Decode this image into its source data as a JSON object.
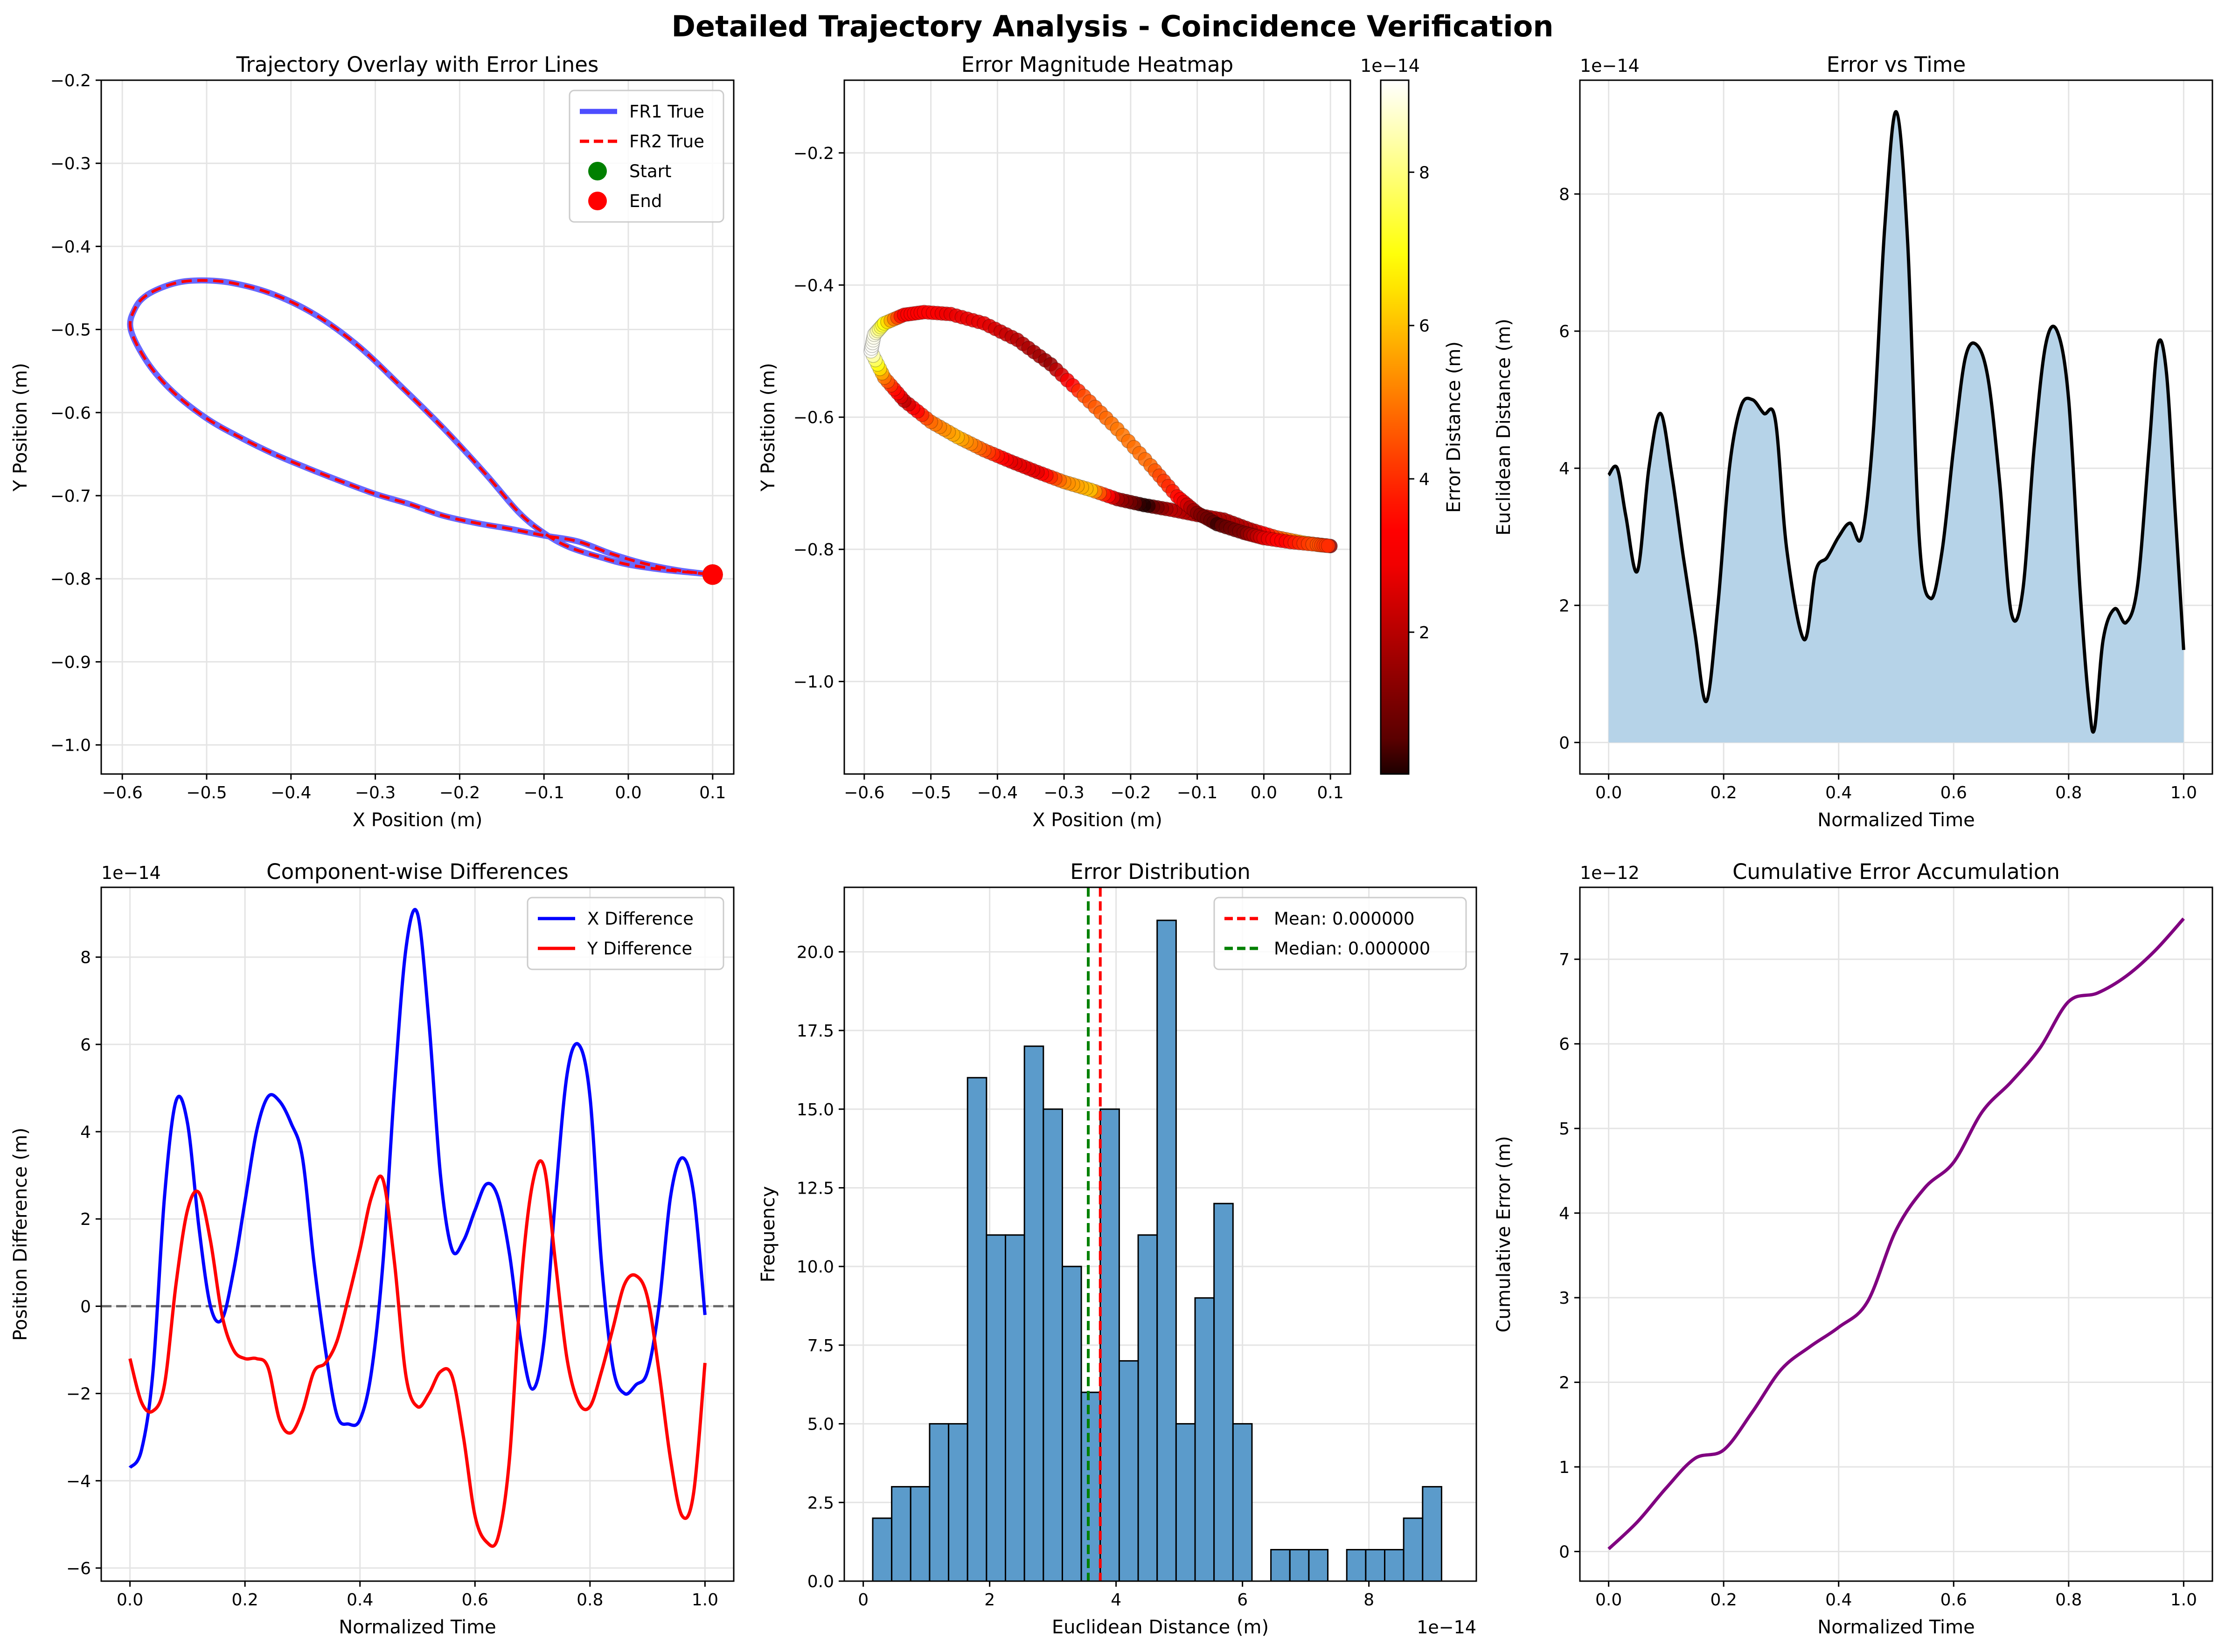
{
  "figure": {
    "title": "Detailed Trajectory Analysis - Coincidence Verification"
  },
  "chart_data": [
    {
      "id": "trajectory_overlay",
      "type": "line",
      "title": "Trajectory Overlay with Error Lines",
      "xlabel": "X Position (m)",
      "ylabel": "Y Position (m)",
      "xlim": [
        -0.625,
        0.125
      ],
      "ylim": [
        -1.035,
        -0.2
      ],
      "xticks": [
        -0.6,
        -0.5,
        -0.4,
        -0.3,
        -0.2,
        -0.1,
        0.0,
        0.1
      ],
      "xtick_labels": [
        "−0.6",
        "−0.5",
        "−0.4",
        "−0.3",
        "−0.2",
        "−0.1",
        "0.0",
        "0.1"
      ],
      "yticks": [
        -1.0,
        -0.9,
        -0.8,
        -0.7,
        -0.6,
        -0.5,
        -0.4,
        -0.3,
        -0.2
      ],
      "ytick_labels": [
        "−1.0",
        "−0.9",
        "−0.8",
        "−0.7",
        "−0.6",
        "−0.5",
        "−0.4",
        "−0.3",
        "−0.2"
      ],
      "grid": true,
      "legend_position": "upper right",
      "series": [
        {
          "name": "FR1 True",
          "style": "solid",
          "color": "#4d4dff",
          "x": [
            0.1,
            0.06,
            0.02,
            -0.02,
            -0.06,
            -0.1,
            -0.14,
            -0.18,
            -0.22,
            -0.26,
            -0.3,
            -0.34,
            -0.38,
            -0.42,
            -0.46,
            -0.5,
            -0.54,
            -0.57,
            -0.59,
            -0.585,
            -0.57,
            -0.54,
            -0.51,
            -0.47,
            -0.42,
            -0.37,
            -0.32,
            -0.27,
            -0.22,
            -0.17,
            -0.13,
            -0.1,
            -0.07,
            -0.03,
            0.0,
            0.04,
            0.08,
            0.1
          ],
          "y": [
            -0.795,
            -0.79,
            -0.782,
            -0.77,
            -0.755,
            -0.748,
            -0.74,
            -0.733,
            -0.724,
            -0.71,
            -0.698,
            -0.683,
            -0.667,
            -0.65,
            -0.63,
            -0.607,
            -0.575,
            -0.54,
            -0.5,
            -0.475,
            -0.458,
            -0.445,
            -0.441,
            -0.444,
            -0.458,
            -0.483,
            -0.52,
            -0.568,
            -0.618,
            -0.673,
            -0.72,
            -0.745,
            -0.762,
            -0.775,
            -0.783,
            -0.789,
            -0.793,
            -0.795
          ]
        },
        {
          "name": "FR2 True",
          "style": "dashed",
          "color": "#ff0000",
          "x": [
            0.1,
            0.06,
            0.02,
            -0.02,
            -0.06,
            -0.1,
            -0.14,
            -0.18,
            -0.22,
            -0.26,
            -0.3,
            -0.34,
            -0.38,
            -0.42,
            -0.46,
            -0.5,
            -0.54,
            -0.57,
            -0.59,
            -0.585,
            -0.57,
            -0.54,
            -0.51,
            -0.47,
            -0.42,
            -0.37,
            -0.32,
            -0.27,
            -0.22,
            -0.17,
            -0.13,
            -0.1,
            -0.07,
            -0.03,
            0.0,
            0.04,
            0.08,
            0.1
          ],
          "y": [
            -0.795,
            -0.79,
            -0.782,
            -0.77,
            -0.755,
            -0.748,
            -0.74,
            -0.733,
            -0.724,
            -0.71,
            -0.698,
            -0.683,
            -0.667,
            -0.65,
            -0.63,
            -0.607,
            -0.575,
            -0.54,
            -0.5,
            -0.475,
            -0.458,
            -0.445,
            -0.441,
            -0.444,
            -0.458,
            -0.483,
            -0.52,
            -0.568,
            -0.618,
            -0.673,
            -0.72,
            -0.745,
            -0.762,
            -0.775,
            -0.783,
            -0.789,
            -0.793,
            -0.795
          ]
        }
      ],
      "markers": [
        {
          "name": "Start",
          "x": 0.1,
          "y": -0.795,
          "color": "#008000"
        },
        {
          "name": "End",
          "x": 0.1,
          "y": -0.795,
          "color": "#ff0000"
        }
      ],
      "legend": [
        "FR1 True",
        "FR2 True",
        "Start",
        "End"
      ]
    },
    {
      "id": "error_heatmap",
      "type": "scatter",
      "title": "Error Magnitude Heatmap",
      "xlabel": "X Position (m)",
      "ylabel": "Y Position (m)",
      "xlim": [
        -0.63,
        0.13
      ],
      "ylim": [
        -1.14,
        -0.09
      ],
      "xticks": [
        -0.6,
        -0.5,
        -0.4,
        -0.3,
        -0.2,
        -0.1,
        0.0,
        0.1
      ],
      "xtick_labels": [
        "−0.6",
        "−0.5",
        "−0.4",
        "−0.3",
        "−0.2",
        "−0.1",
        "0.0",
        "0.1"
      ],
      "yticks": [
        -1.0,
        -0.8,
        -0.6,
        -0.4,
        -0.2
      ],
      "ytick_labels": [
        "−1.0",
        "−0.8",
        "−0.6",
        "−0.4",
        "−0.2"
      ],
      "grid": true,
      "colormap": "hot",
      "colorbar": {
        "label": "Error Distance (m)",
        "range": [
          0.15,
          9.2
        ],
        "ticks": [
          2,
          4,
          6,
          8
        ],
        "tick_labels": [
          "2",
          "4",
          "6",
          "8"
        ],
        "offset_text": "1e−14"
      },
      "points_x": [
        0.1,
        0.06,
        0.02,
        -0.02,
        -0.06,
        -0.1,
        -0.14,
        -0.18,
        -0.22,
        -0.26,
        -0.3,
        -0.34,
        -0.38,
        -0.42,
        -0.46,
        -0.5,
        -0.54,
        -0.57,
        -0.59,
        -0.585,
        -0.57,
        -0.54,
        -0.51,
        -0.47,
        -0.42,
        -0.37,
        -0.32,
        -0.27,
        -0.22,
        -0.17,
        -0.13,
        -0.1,
        -0.07,
        -0.03,
        0.0,
        0.04,
        0.08,
        0.1
      ],
      "points_y": [
        -0.795,
        -0.79,
        -0.782,
        -0.77,
        -0.755,
        -0.748,
        -0.74,
        -0.733,
        -0.724,
        -0.71,
        -0.698,
        -0.683,
        -0.667,
        -0.65,
        -0.63,
        -0.607,
        -0.575,
        -0.54,
        -0.5,
        -0.475,
        -0.458,
        -0.445,
        -0.441,
        -0.444,
        -0.458,
        -0.483,
        -0.52,
        -0.568,
        -0.618,
        -0.673,
        -0.72,
        -0.745,
        -0.762,
        -0.775,
        -0.783,
        -0.789,
        -0.793,
        -0.795
      ],
      "error_values": [
        1.3,
        5.8,
        4.5,
        2.0,
        1.8,
        1.9,
        2.0,
        0.2,
        1.7,
        6.0,
        5.2,
        2.7,
        2.7,
        4.5,
        5.8,
        4.8,
        2.1,
        5.0,
        9.2,
        9.0,
        7.0,
        3.0,
        3.2,
        2.8,
        2.7,
        2.0,
        1.5,
        4.4,
        5.0,
        4.8,
        3.5,
        1.3,
        0.6,
        1.2,
        2.6,
        3.6,
        4.5,
        3.9
      ]
    },
    {
      "id": "error_vs_time",
      "type": "area",
      "title": "Error vs Time",
      "xlabel": "Normalized Time",
      "ylabel": "Euclidean Distance (m)",
      "xlim": [
        -0.05,
        1.05
      ],
      "ylim": [
        -0.46,
        9.66
      ],
      "xticks": [
        0.0,
        0.2,
        0.4,
        0.6,
        0.8,
        1.0
      ],
      "xtick_labels": [
        "0.0",
        "0.2",
        "0.4",
        "0.6",
        "0.8",
        "1.0"
      ],
      "yticks": [
        0,
        2,
        4,
        6,
        8
      ],
      "ytick_labels": [
        "0",
        "2",
        "4",
        "6",
        "8"
      ],
      "offset_text": "1e−14",
      "grid": true,
      "x": [
        0.0,
        0.015,
        0.03,
        0.05,
        0.07,
        0.09,
        0.11,
        0.13,
        0.15,
        0.17,
        0.19,
        0.21,
        0.23,
        0.25,
        0.27,
        0.29,
        0.31,
        0.34,
        0.36,
        0.38,
        0.4,
        0.42,
        0.44,
        0.46,
        0.48,
        0.5,
        0.52,
        0.54,
        0.56,
        0.58,
        0.6,
        0.62,
        0.64,
        0.66,
        0.68,
        0.7,
        0.72,
        0.74,
        0.76,
        0.78,
        0.8,
        0.82,
        0.835,
        0.845,
        0.86,
        0.88,
        0.9,
        0.92,
        0.94,
        0.955,
        0.97,
        0.985,
        1.0
      ],
      "y": [
        3.9,
        4.0,
        3.3,
        2.5,
        4.0,
        4.8,
        3.9,
        2.7,
        1.6,
        0.6,
        2.0,
        4.0,
        4.9,
        5.0,
        4.8,
        4.7,
        2.8,
        1.5,
        2.5,
        2.7,
        3.0,
        3.2,
        3.0,
        4.5,
        7.5,
        9.2,
        7.3,
        3.0,
        2.1,
        2.8,
        4.3,
        5.6,
        5.8,
        5.3,
        3.8,
        1.9,
        2.2,
        4.3,
        5.8,
        6.0,
        5.0,
        2.2,
        0.6,
        0.2,
        1.5,
        1.95,
        1.75,
        2.3,
        4.3,
        5.8,
        5.4,
        3.4,
        1.35
      ],
      "line_color": "#000000",
      "fill_color": "#b6d3e8"
    },
    {
      "id": "component_differences",
      "type": "line",
      "title": "Component-wise Differences",
      "xlabel": "Normalized Time",
      "ylabel": "Position Difference (m)",
      "xlim": [
        -0.05,
        1.05
      ],
      "ylim": [
        -6.3,
        9.6
      ],
      "xticks": [
        0.0,
        0.2,
        0.4,
        0.6,
        0.8,
        1.0
      ],
      "xtick_labels": [
        "0.0",
        "0.2",
        "0.4",
        "0.6",
        "0.8",
        "1.0"
      ],
      "yticks": [
        -6,
        -4,
        -2,
        0,
        2,
        4,
        6,
        8
      ],
      "ytick_labels": [
        "−6",
        "−4",
        "−2",
        "0",
        "2",
        "4",
        "6",
        "8"
      ],
      "offset_text": "1e−14",
      "grid": true,
      "legend_position": "upper right",
      "zero_line": true,
      "x": [
        0.0,
        0.02,
        0.04,
        0.06,
        0.08,
        0.1,
        0.12,
        0.14,
        0.16,
        0.18,
        0.2,
        0.22,
        0.24,
        0.26,
        0.28,
        0.3,
        0.32,
        0.34,
        0.36,
        0.38,
        0.4,
        0.42,
        0.44,
        0.46,
        0.48,
        0.5,
        0.52,
        0.54,
        0.56,
        0.58,
        0.6,
        0.62,
        0.64,
        0.66,
        0.68,
        0.7,
        0.72,
        0.74,
        0.76,
        0.78,
        0.8,
        0.82,
        0.84,
        0.86,
        0.88,
        0.9,
        0.92,
        0.94,
        0.96,
        0.98,
        1.0
      ],
      "series": [
        {
          "name": "X Difference",
          "color": "#0000ff",
          "y": [
            -3.7,
            -3.3,
            -1.5,
            2.5,
            4.7,
            4.2,
            1.8,
            0.0,
            -0.3,
            0.8,
            2.4,
            4.0,
            4.8,
            4.7,
            4.2,
            3.4,
            1.0,
            -1.0,
            -2.5,
            -2.7,
            -2.6,
            -1.5,
            1.0,
            5.0,
            8.2,
            9.0,
            6.5,
            3.0,
            1.3,
            1.5,
            2.2,
            2.8,
            2.5,
            1.2,
            -0.8,
            -1.9,
            -0.8,
            2.5,
            5.3,
            6.0,
            4.8,
            1.0,
            -1.4,
            -2.0,
            -1.8,
            -1.5,
            0.0,
            2.5,
            3.4,
            2.6,
            -0.2
          ]
        },
        {
          "name": "Y Difference",
          "color": "#ff0000",
          "y": [
            -1.2,
            -2.2,
            -2.4,
            -1.8,
            0.5,
            2.2,
            2.6,
            1.5,
            -0.2,
            -1.0,
            -1.2,
            -1.2,
            -1.4,
            -2.6,
            -2.9,
            -2.4,
            -1.5,
            -1.3,
            -0.8,
            0.2,
            1.3,
            2.5,
            2.9,
            1.0,
            -1.6,
            -2.3,
            -2.0,
            -1.5,
            -1.6,
            -3.0,
            -4.8,
            -5.4,
            -5.3,
            -3.5,
            0.5,
            2.8,
            3.2,
            1.0,
            -1.2,
            -2.2,
            -2.3,
            -1.5,
            -0.5,
            0.5,
            0.7,
            0.2,
            -1.5,
            -3.5,
            -4.8,
            -4.3,
            -1.3
          ]
        }
      ]
    },
    {
      "id": "error_distribution",
      "type": "bar",
      "title": "Error Distribution",
      "xlabel": "Euclidean Distance (m)",
      "ylabel": "Frequency",
      "xlim": [
        -0.3,
        9.7
      ],
      "ylim": [
        0,
        22.05
      ],
      "xticks": [
        0,
        2,
        4,
        6,
        8
      ],
      "xtick_labels": [
        "0",
        "2",
        "4",
        "6",
        "8"
      ],
      "yticks": [
        0.0,
        2.5,
        5.0,
        7.5,
        10.0,
        12.5,
        15.0,
        17.5,
        20.0
      ],
      "ytick_labels": [
        "0.0",
        "2.5",
        "5.0",
        "7.5",
        "10.0",
        "12.5",
        "15.0",
        "17.5",
        "20.0"
      ],
      "offset_text": "1e−14",
      "grid": true,
      "legend_position": "upper right",
      "bin_start": 0.15,
      "bin_width": 0.3,
      "counts": [
        2,
        3,
        3,
        5,
        5,
        16,
        11,
        11,
        17,
        15,
        10,
        6,
        15,
        7,
        11,
        21,
        5,
        9,
        12,
        5,
        0,
        1,
        1,
        1,
        0,
        1,
        1,
        1,
        2,
        3
      ],
      "bar_color": "#5b9bcb",
      "vlines": [
        {
          "label": "Mean: 0.000000",
          "value": 3.75,
          "color": "#ff0000"
        },
        {
          "label": "Median: 0.000000",
          "value": 3.56,
          "color": "#008000"
        }
      ]
    },
    {
      "id": "cumulative_error",
      "type": "line",
      "title": "Cumulative Error Accumulation",
      "xlabel": "Normalized Time",
      "ylabel": "Cumulative Error (m)",
      "xlim": [
        -0.05,
        1.05
      ],
      "ylim": [
        -0.35,
        7.85
      ],
      "xticks": [
        0.0,
        0.2,
        0.4,
        0.6,
        0.8,
        1.0
      ],
      "xtick_labels": [
        "0.0",
        "0.2",
        "0.4",
        "0.6",
        "0.8",
        "1.0"
      ],
      "yticks": [
        0,
        1,
        2,
        3,
        4,
        5,
        6,
        7
      ],
      "ytick_labels": [
        "0",
        "1",
        "2",
        "3",
        "4",
        "5",
        "6",
        "7"
      ],
      "offset_text": "1e−12",
      "grid": true,
      "color": "#800080",
      "x": [
        0.0,
        0.05,
        0.1,
        0.15,
        0.2,
        0.25,
        0.3,
        0.35,
        0.4,
        0.45,
        0.5,
        0.55,
        0.6,
        0.65,
        0.7,
        0.75,
        0.8,
        0.85,
        0.9,
        0.95,
        1.0
      ],
      "y": [
        0.03,
        0.35,
        0.75,
        1.1,
        1.2,
        1.65,
        2.15,
        2.42,
        2.65,
        2.95,
        3.8,
        4.3,
        4.6,
        5.2,
        5.55,
        5.95,
        6.5,
        6.6,
        6.8,
        7.1,
        7.48
      ]
    }
  ]
}
